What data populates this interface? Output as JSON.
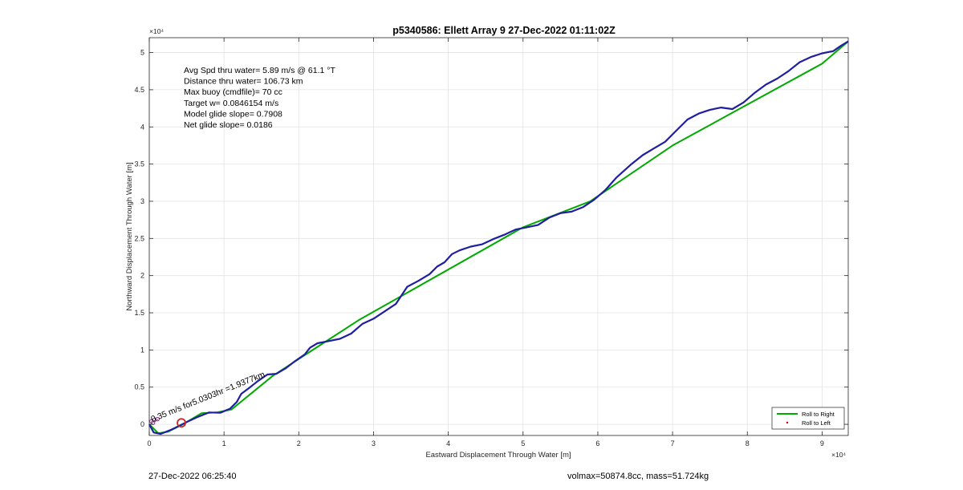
{
  "chart_data": {
    "type": "line",
    "title": "p5340586: Ellett Array 9 27-Dec-2022 01:11:02Z",
    "xlabel": "Eastward Displacement Through Water [m]",
    "ylabel": "Northward Displacement Through Water [m]",
    "xlim": [
      0,
      93500
    ],
    "ylim": [
      -1500,
      52000
    ],
    "x_ticks": [
      0,
      10000,
      20000,
      30000,
      40000,
      50000,
      60000,
      70000,
      80000,
      90000
    ],
    "x_tick_labels": [
      "0",
      "1",
      "2",
      "3",
      "4",
      "5",
      "6",
      "7",
      "8",
      "9"
    ],
    "y_ticks": [
      0,
      5000,
      10000,
      15000,
      20000,
      25000,
      30000,
      35000,
      40000,
      45000,
      50000
    ],
    "y_tick_labels": [
      "0",
      "0.5",
      "1",
      "1.5",
      "2",
      "2.5",
      "3",
      "3.5",
      "4",
      "4.5",
      "5"
    ],
    "x_exponent": "×10⁴",
    "y_exponent": "×10⁴",
    "grid": true,
    "legend_position": "bottom-right",
    "series": [
      {
        "name": "Roll to Right",
        "color": "#00aa00",
        "style": "line",
        "points": [
          [
            0,
            0
          ],
          [
            1200,
            -1200
          ],
          [
            2500,
            -1000
          ],
          [
            4500,
            0
          ],
          [
            7000,
            1500
          ],
          [
            9000,
            1600
          ],
          [
            11000,
            2000
          ],
          [
            16500,
            6500
          ],
          [
            28000,
            14000
          ],
          [
            50000,
            26500
          ],
          [
            59000,
            30000
          ],
          [
            70000,
            37500
          ],
          [
            80000,
            43000
          ],
          [
            90000,
            48500
          ],
          [
            93500,
            51500
          ]
        ]
      },
      {
        "name": "Roll to Left",
        "color": "#cc0000",
        "style": "marker",
        "points": []
      },
      {
        "name": "",
        "color": "#1f1fa0",
        "style": "line",
        "points": [
          [
            0,
            0
          ],
          [
            600,
            -1100
          ],
          [
            1500,
            -1300
          ],
          [
            3000,
            -700
          ],
          [
            5000,
            300
          ],
          [
            6500,
            1000
          ],
          [
            8000,
            1600
          ],
          [
            9500,
            1550
          ],
          [
            10800,
            2100
          ],
          [
            11700,
            3000
          ],
          [
            12300,
            4100
          ],
          [
            13500,
            5000
          ],
          [
            14500,
            5800
          ],
          [
            15800,
            6700
          ],
          [
            17000,
            6800
          ],
          [
            18200,
            7500
          ],
          [
            19500,
            8500
          ],
          [
            20800,
            9400
          ],
          [
            21500,
            10300
          ],
          [
            22500,
            10900
          ],
          [
            24000,
            11200
          ],
          [
            25500,
            11500
          ],
          [
            27000,
            12200
          ],
          [
            28500,
            13500
          ],
          [
            30000,
            14200
          ],
          [
            31500,
            15200
          ],
          [
            33000,
            16200
          ],
          [
            34500,
            18500
          ],
          [
            36000,
            19300
          ],
          [
            37500,
            20200
          ],
          [
            38500,
            21200
          ],
          [
            39500,
            21800
          ],
          [
            40500,
            22900
          ],
          [
            41500,
            23400
          ],
          [
            43000,
            23900
          ],
          [
            44500,
            24200
          ],
          [
            46000,
            24900
          ],
          [
            47500,
            25500
          ],
          [
            49000,
            26200
          ],
          [
            50500,
            26500
          ],
          [
            52000,
            26800
          ],
          [
            53500,
            27800
          ],
          [
            55000,
            28400
          ],
          [
            56500,
            28600
          ],
          [
            58000,
            29200
          ],
          [
            59500,
            30200
          ],
          [
            61000,
            31500
          ],
          [
            62500,
            33200
          ],
          [
            64500,
            35000
          ],
          [
            66000,
            36200
          ],
          [
            67500,
            37100
          ],
          [
            69000,
            38000
          ],
          [
            70500,
            39500
          ],
          [
            72000,
            41000
          ],
          [
            73500,
            41800
          ],
          [
            75000,
            42300
          ],
          [
            76500,
            42600
          ],
          [
            78000,
            42400
          ],
          [
            79500,
            43300
          ],
          [
            81000,
            44600
          ],
          [
            82500,
            45700
          ],
          [
            84000,
            46500
          ],
          [
            85500,
            47500
          ],
          [
            87000,
            48700
          ],
          [
            88500,
            49400
          ],
          [
            90000,
            49900
          ],
          [
            91500,
            50200
          ],
          [
            92500,
            50900
          ],
          [
            93500,
            51500
          ]
        ]
      }
    ],
    "markers": [
      {
        "name": "red-circle",
        "x": 4300,
        "y": 200,
        "color": "#cc2222"
      }
    ],
    "annotations": {
      "stats": [
        "Avg Spd thru water=  5.89 m/s @  61.1 °T",
        "Distance thru water= 106.73 km",
        "Max buoy (cmdfile)= 70 cc",
        "Target w= 0.0846154 m/s",
        "Model glide slope= 0.7908",
        "Net glide slope= 0.0186"
      ],
      "rotated_label": "0.35 m/s for5.0303hr =1.9377km",
      "rotated_label_x": 400,
      "rotated_label_y": 300
    }
  },
  "footer": {
    "left": "27-Dec-2022 06:25:40",
    "right": "volmax=50874.8cc, mass=51.724kg"
  }
}
